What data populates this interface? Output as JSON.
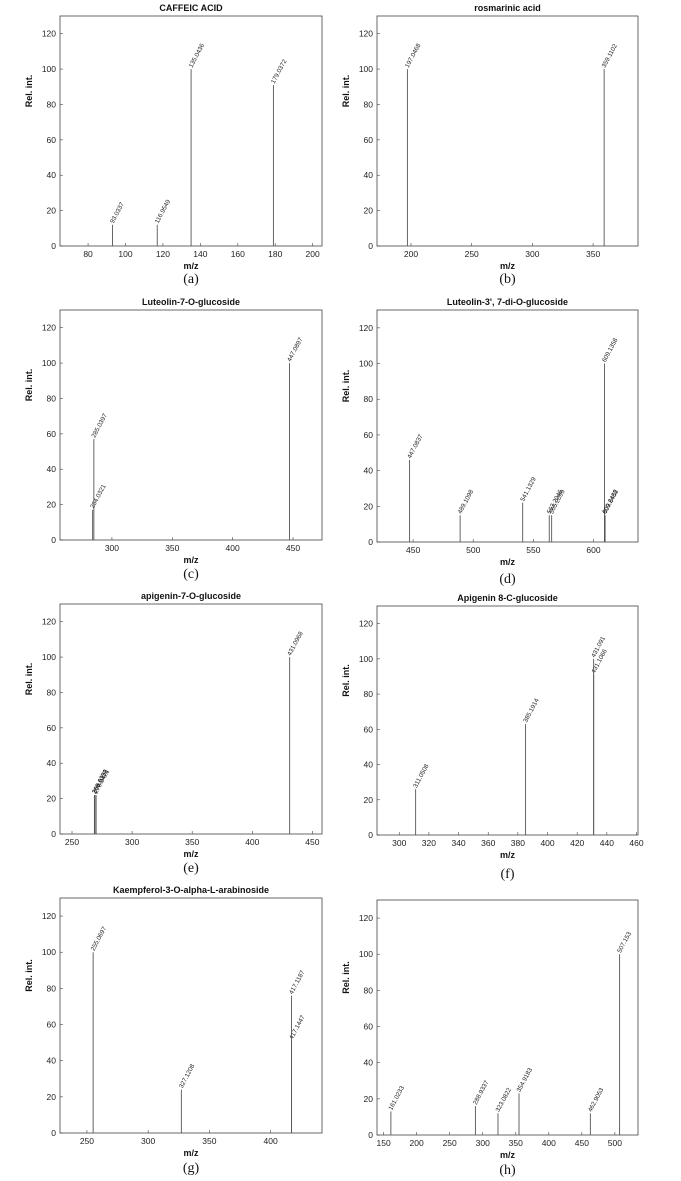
{
  "chart_data": [
    {
      "type": "bar",
      "title": "CAFFEIC ACID",
      "xlabel": "m/z",
      "ylabel": "Rel. int.",
      "caption": "(a)",
      "xlim": [
        65,
        205
      ],
      "ylim": [
        0,
        130
      ],
      "xticks": [
        80,
        100,
        120,
        140,
        160,
        180,
        200
      ],
      "yticks": [
        0,
        20,
        40,
        60,
        80,
        100,
        120
      ],
      "peaks": [
        {
          "x": 93.0337,
          "y": 12,
          "label": "93.0337"
        },
        {
          "x": 116.9549,
          "y": 12,
          "label": "116.9549"
        },
        {
          "x": 135.0436,
          "y": 100,
          "label": "135.0436"
        },
        {
          "x": 179.0372,
          "y": 91,
          "label": "179.0372"
        }
      ]
    },
    {
      "type": "bar",
      "title": "rosmarinic acid",
      "xlabel": "m/z",
      "ylabel": "Rel. int.",
      "caption": "(b)",
      "xlim": [
        172,
        387
      ],
      "ylim": [
        0,
        130
      ],
      "xticks": [
        200,
        250,
        300,
        350
      ],
      "yticks": [
        0,
        20,
        40,
        60,
        80,
        100,
        120
      ],
      "peaks": [
        {
          "x": 197.0468,
          "y": 100,
          "label": "197.0468"
        },
        {
          "x": 359.1102,
          "y": 100,
          "label": "359.1102"
        }
      ]
    },
    {
      "type": "bar",
      "title": "Luteolin-7-O-glucoside",
      "xlabel": "m/z",
      "ylabel": "Rel. int.",
      "caption": "(c)",
      "xlim": [
        257,
        474
      ],
      "ylim": [
        0,
        130
      ],
      "xticks": [
        300,
        350,
        400,
        450
      ],
      "yticks": [
        0,
        20,
        40,
        60,
        80,
        100,
        120
      ],
      "peaks": [
        {
          "x": 284.0321,
          "y": 17,
          "label": "284.0321"
        },
        {
          "x": 285.0397,
          "y": 57,
          "label": "285.0397"
        },
        {
          "x": 447.0897,
          "y": 100,
          "label": "447.0897"
        }
      ]
    },
    {
      "type": "bar",
      "title": "Luteolin-3', 7-di-O-glucoside",
      "xlabel": "m/z",
      "ylabel": "Rel. int.",
      "caption": "(d)",
      "xlim": [
        420,
        637
      ],
      "ylim": [
        0,
        130
      ],
      "xticks": [
        450,
        500,
        550,
        600
      ],
      "yticks": [
        0,
        20,
        40,
        60,
        80,
        100,
        120
      ],
      "peaks": [
        {
          "x": 447.0837,
          "y": 46,
          "label": "447.0837"
        },
        {
          "x": 489.1098,
          "y": 15,
          "label": "489.1098"
        },
        {
          "x": 541.1329,
          "y": 22,
          "label": "541.1329"
        },
        {
          "x": 563.2046,
          "y": 15,
          "label": "563.2046"
        },
        {
          "x": 565.2099,
          "y": 15,
          "label": "565.2099"
        },
        {
          "x": 609.1358,
          "y": 100,
          "label": "609.1358"
        },
        {
          "x": 609.2488,
          "y": 15,
          "label": "609.2488"
        },
        {
          "x": 609.6452,
          "y": 15,
          "label": "609.6452"
        }
      ]
    },
    {
      "type": "bar",
      "title": "apigenin-7-O-glucoside",
      "xlabel": "m/z",
      "ylabel": "Rel. int.",
      "caption": "(e)",
      "xlim": [
        240,
        458
      ],
      "ylim": [
        0,
        130
      ],
      "xticks": [
        250,
        300,
        350,
        400,
        450
      ],
      "yticks": [
        0,
        20,
        40,
        60,
        80,
        100,
        120
      ],
      "peaks": [
        {
          "x": 268.6352,
          "y": 22,
          "label": "268.6352"
        },
        {
          "x": 269.0378,
          "y": 22,
          "label": "269.0378"
        },
        {
          "x": 270.0421,
          "y": 22,
          "label": "270.0421"
        },
        {
          "x": 431.0968,
          "y": 100,
          "label": "431.0968"
        }
      ]
    },
    {
      "type": "bar",
      "title": "Apigenin 8-C-glucoside",
      "xlabel": "m/z",
      "ylabel": "Rel. int.",
      "caption": "(f)",
      "xlim": [
        285,
        461
      ],
      "ylim": [
        0,
        130
      ],
      "xticks": [
        300,
        320,
        340,
        360,
        380,
        400,
        420,
        440,
        460
      ],
      "yticks": [
        0,
        20,
        40,
        60,
        80,
        100,
        120
      ],
      "peaks": [
        {
          "x": 311.0508,
          "y": 26,
          "label": "311.0508"
        },
        {
          "x": 385.1914,
          "y": 63,
          "label": "385.1914"
        },
        {
          "x": 431.1066,
          "y": 91,
          "label": "431.1066"
        },
        {
          "x": 431.091,
          "y": 100,
          "label": "431.091"
        }
      ]
    },
    {
      "type": "bar",
      "title": "Kaempferol-3-O-alpha-L-arabinoside",
      "xlabel": "m/z",
      "ylabel": "Rel. int.",
      "caption": "(g)",
      "xlim": [
        228,
        442
      ],
      "ylim": [
        0,
        130
      ],
      "xticks": [
        250,
        300,
        350,
        400
      ],
      "yticks": [
        0,
        20,
        40,
        60,
        80,
        100,
        120
      ],
      "peaks": [
        {
          "x": 255.0697,
          "y": 100,
          "label": "255.0697"
        },
        {
          "x": 327.1208,
          "y": 24,
          "label": "327.1208"
        },
        {
          "x": 417.1447,
          "y": 51,
          "label": "417.1447"
        },
        {
          "x": 417.1187,
          "y": 76,
          "label": "417.1187"
        }
      ]
    },
    {
      "type": "bar",
      "title": "",
      "xlabel": "m/z",
      "ylabel": "Rel. int.",
      "caption": "(h)",
      "xlim": [
        140,
        535
      ],
      "ylim": [
        0,
        130
      ],
      "xticks": [
        150,
        200,
        250,
        300,
        350,
        400,
        450,
        500
      ],
      "yticks": [
        0,
        20,
        40,
        60,
        80,
        100,
        120
      ],
      "peaks": [
        {
          "x": 161.0233,
          "y": 13,
          "label": "161.0233"
        },
        {
          "x": 288.9337,
          "y": 16,
          "label": "288.9337"
        },
        {
          "x": 323.0822,
          "y": 12,
          "label": "323.0822"
        },
        {
          "x": 354.9183,
          "y": 23,
          "label": "354.9183"
        },
        {
          "x": 462.9053,
          "y": 12,
          "label": "462.9053"
        },
        {
          "x": 507.153,
          "y": 100,
          "label": "507.153"
        }
      ]
    }
  ]
}
